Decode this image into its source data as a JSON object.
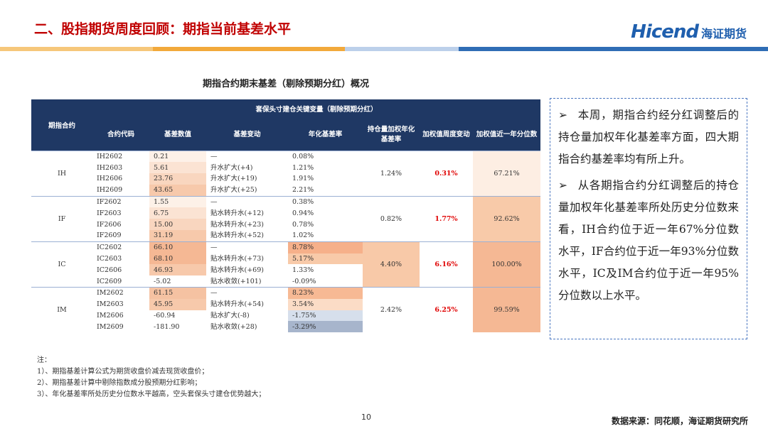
{
  "header": {
    "title": "二、股指期货周度回顾：期指当前基差水平",
    "logo_text": "Hicend",
    "logo_cn": "海证期货"
  },
  "table": {
    "caption": "期指合约期末基差（剔除预期分红）概况",
    "row_header": "期指合约",
    "group_header": "套保头寸建仓关键变量（剔除预期分红）",
    "columns": [
      "合约代码",
      "基差数值",
      "基差变动",
      "年化基差率",
      "持仓量加权年化基差率",
      "加权值周度变动",
      "加权值近一年分位数"
    ],
    "groups": [
      {
        "name": "IH",
        "rows": [
          [
            "IH2602",
            "0.21",
            "—",
            "0.08%"
          ],
          [
            "IH2603",
            "5.61",
            "升水扩大(+4)",
            "1.21%"
          ],
          [
            "IH2606",
            "23.76",
            "升水扩大(+19)",
            "1.91%"
          ],
          [
            "IH2609",
            "43.65",
            "升水扩大(+25)",
            "2.21%"
          ]
        ],
        "weighted_rate": "1.24%",
        "weighted_change": "0.31%",
        "percentile": "67.21%"
      },
      {
        "name": "IF",
        "rows": [
          [
            "IF2602",
            "1.55",
            "—",
            "0.38%"
          ],
          [
            "IF2603",
            "6.75",
            "贴水转升水(+12)",
            "0.94%"
          ],
          [
            "IF2606",
            "15.00",
            "贴水转升水(+23)",
            "0.78%"
          ],
          [
            "IF2609",
            "31.19",
            "贴水转升水(+52)",
            "1.02%"
          ]
        ],
        "weighted_rate": "0.82%",
        "weighted_change": "1.77%",
        "percentile": "92.62%"
      },
      {
        "name": "IC",
        "rows": [
          [
            "IC2602",
            "66.10",
            "—",
            "8.78%"
          ],
          [
            "IC2603",
            "68.10",
            "贴水转升水(+73)",
            "5.17%"
          ],
          [
            "IC2606",
            "46.93",
            "贴水转升水(+69)",
            "1.33%"
          ],
          [
            "IC2609",
            "-5.02",
            "贴水收敛(+101)",
            "-0.09%"
          ]
        ],
        "weighted_rate": "4.40%",
        "weighted_change": "6.16%",
        "percentile": "100.00%"
      },
      {
        "name": "IM",
        "rows": [
          [
            "IM2602",
            "61.15",
            "—",
            "8.23%"
          ],
          [
            "IM2603",
            "45.95",
            "贴水转升水(+54)",
            "3.54%"
          ],
          [
            "IM2606",
            "-60.94",
            "贴水扩大(-8)",
            "-1.75%"
          ],
          [
            "IM2609",
            "-181.90",
            "贴水收敛(+28)",
            "-3.29%"
          ]
        ],
        "weighted_rate": "2.42%",
        "weighted_change": "6.25%",
        "percentile": "99.59%"
      }
    ]
  },
  "sidebar": {
    "paragraphs": [
      "本周，期指合约经分红调整后的持仓量加权年化基差率方面，四大期指合约基差率均有所上升。",
      "从各期指合约分红调整后的持仓量加权年化基差率所处历史分位数来看，IH合约位于近一年67%分位数水平，IF合约位于近一年93%分位数水平，IC及IM合约位于近一年95%分位数以上水平。"
    ]
  },
  "notes": {
    "title": "注：",
    "items": [
      "1）、期指基差计算公式为期货收盘价减去现货收盘价；",
      "2）、期指基差计算中剔除指数成分股预期分红影响；",
      "3）、年化基差率所处历史分位数水平越高，空头套保头寸建仓优势越大；"
    ]
  },
  "footer": {
    "page": "10",
    "source": "数据来源：同花顺，海证期货研究所"
  }
}
